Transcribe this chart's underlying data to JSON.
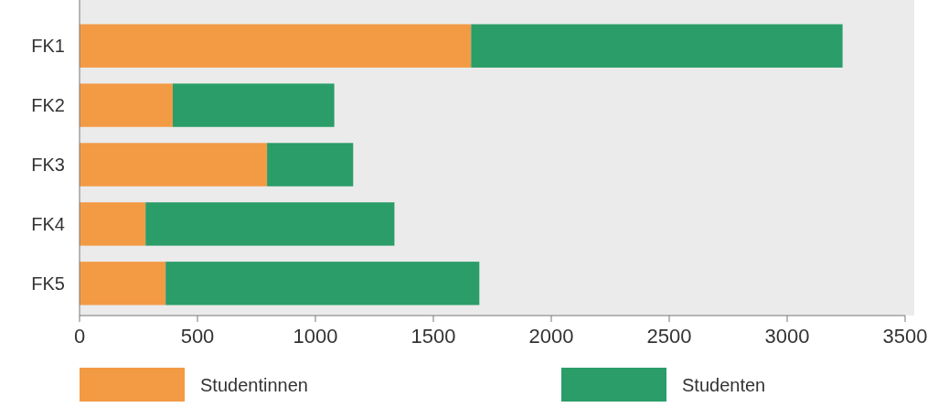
{
  "chart_data": {
    "type": "bar",
    "orientation": "horizontal",
    "stacked": true,
    "categories": [
      "FK1",
      "FK2",
      "FK3",
      "FK4",
      "FK5"
    ],
    "series": [
      {
        "name": "Studentinnen",
        "color": "#f39a45",
        "values": [
          1660,
          395,
          795,
          280,
          365
        ]
      },
      {
        "name": "Studenten",
        "color": "#2a9d68",
        "values": [
          1575,
          685,
          365,
          1055,
          1330
        ]
      }
    ],
    "xlim": [
      0,
      3500
    ],
    "xticks": [
      0,
      500,
      1000,
      1500,
      2000,
      2500,
      3000,
      3500
    ],
    "grid": false,
    "legend": "bottom"
  }
}
